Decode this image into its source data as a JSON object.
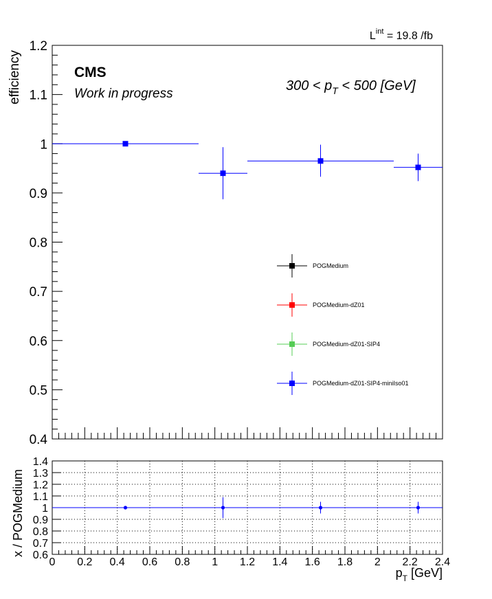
{
  "lumi": {
    "prefix": "L",
    "sup": "int",
    "value": " = 19.8 /fb"
  },
  "cms_label": "CMS",
  "subtitle": "Work in progress",
  "pt_range": {
    "pre": "300 < p",
    "sub": "T",
    "post": " < 500 [GeV]"
  },
  "chart_data": [
    {
      "type": "scatter",
      "ylabel": "efficiency",
      "xlim": [
        0,
        2.4
      ],
      "ylim": [
        0.4,
        1.2
      ],
      "y_ticks": [
        "0.4",
        "0.5",
        "0.6",
        "0.7",
        "0.8",
        "0.9",
        "1",
        "1.1",
        "1.2"
      ],
      "grid": false,
      "legend_position": "center-right",
      "series": [
        {
          "name": "POGMedium",
          "color": "#000000",
          "points": []
        },
        {
          "name": "POGMedium-dZ01",
          "color": "#ff0000",
          "points": []
        },
        {
          "name": "POGMedium-dZ01-SIP4",
          "color": "#55cc55",
          "points": []
        },
        {
          "name": "POGMedium-dZ01-SIP4-miniIso01",
          "color": "#0000ff",
          "points": [
            {
              "x": 0.45,
              "xlo": 0.0,
              "xhi": 0.9,
              "y": 1.0,
              "ylo": 1.0,
              "yhi": 1.0
            },
            {
              "x": 1.05,
              "xlo": 0.9,
              "xhi": 1.2,
              "y": 0.94,
              "ylo": 0.887,
              "yhi": 0.993
            },
            {
              "x": 1.65,
              "xlo": 1.2,
              "xhi": 2.1,
              "y": 0.965,
              "ylo": 0.933,
              "yhi": 0.998
            },
            {
              "x": 2.25,
              "xlo": 2.1,
              "xhi": 2.4,
              "y": 0.952,
              "ylo": 0.924,
              "yhi": 0.98
            }
          ]
        }
      ]
    },
    {
      "type": "scatter",
      "ylabel": "x / POGMedium",
      "xlabel": {
        "main": "p",
        "sub": "T",
        "unit": " [GeV]"
      },
      "xlim": [
        0,
        2.4
      ],
      "ylim": [
        0.6,
        1.4
      ],
      "x_ticks": [
        "0",
        "0.2",
        "0.4",
        "0.6",
        "0.8",
        "1",
        "1.2",
        "1.4",
        "1.6",
        "1.8",
        "2",
        "2.2",
        "2.4"
      ],
      "y_ticks": [
        "0.6",
        "0.7",
        "0.8",
        "0.9",
        "1",
        "1.1",
        "1.2",
        "1.3",
        "1.4"
      ],
      "grid": true,
      "reference_line": 1.0,
      "points": [
        {
          "x": 0.45,
          "y": 1.0,
          "ylo": 0.99,
          "yhi": 1.01
        },
        {
          "x": 1.05,
          "y": 1.0,
          "ylo": 0.91,
          "yhi": 1.09
        },
        {
          "x": 1.65,
          "y": 1.0,
          "ylo": 0.95,
          "yhi": 1.05
        },
        {
          "x": 2.25,
          "y": 1.0,
          "ylo": 0.95,
          "yhi": 1.05
        }
      ],
      "color": "#0000ff"
    }
  ]
}
